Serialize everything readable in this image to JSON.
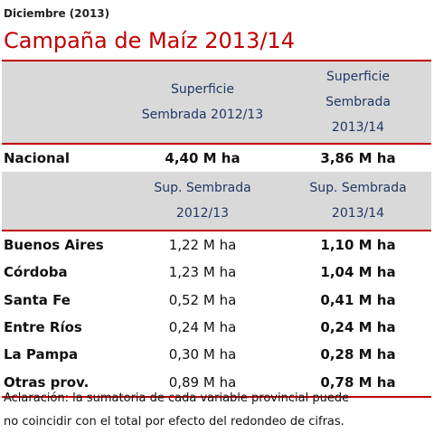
{
  "header": {
    "date": "Diciembre (2013)",
    "title": "Campaña de Maíz 2013/14"
  },
  "table": {
    "national_header": {
      "col2_line1": "Superficie",
      "col2_line2": "Sembrada 2012/13",
      "col3_line1": "Superficie",
      "col3_line2": "Sembrada",
      "col3_line3": "2013/14"
    },
    "national_row": {
      "label": "Nacional",
      "v2012": "4,40 M ha",
      "v2013": "3,86 M ha"
    },
    "provincial_header": {
      "col2_line1": "Sup. Sembrada",
      "col2_line2": "2012/13",
      "col3_line1": "Sup. Sembrada",
      "col3_line2": "2013/14"
    },
    "provinces": [
      {
        "name": "Buenos Aires",
        "v2012": "1,22 M ha",
        "v2013": "1,10 M ha"
      },
      {
        "name": "Córdoba",
        "v2012": "1,23 M ha",
        "v2013": "1,04 M ha"
      },
      {
        "name": "Santa Fe",
        "v2012": "0,52 M ha",
        "v2013": "0,41 M ha"
      },
      {
        "name": "Entre Ríos",
        "v2012": "0,24 M ha",
        "v2013": "0,24 M ha"
      },
      {
        "name": "La Pampa",
        "v2012": "0,30 M ha",
        "v2013": "0,28 M ha"
      },
      {
        "name": "Otras prov.",
        "v2012": "0,89 M ha",
        "v2013": "0,78 M ha"
      }
    ]
  },
  "note": {
    "line1": "Aclaración: la sumatoria de cada variable provincial puede",
    "line2": "no coincidir con el total por efecto del redondeo de cifras."
  },
  "colors": {
    "accent_red": "#c00000",
    "header_grey": "#d9d9d9",
    "header_text": "#1f3864"
  }
}
